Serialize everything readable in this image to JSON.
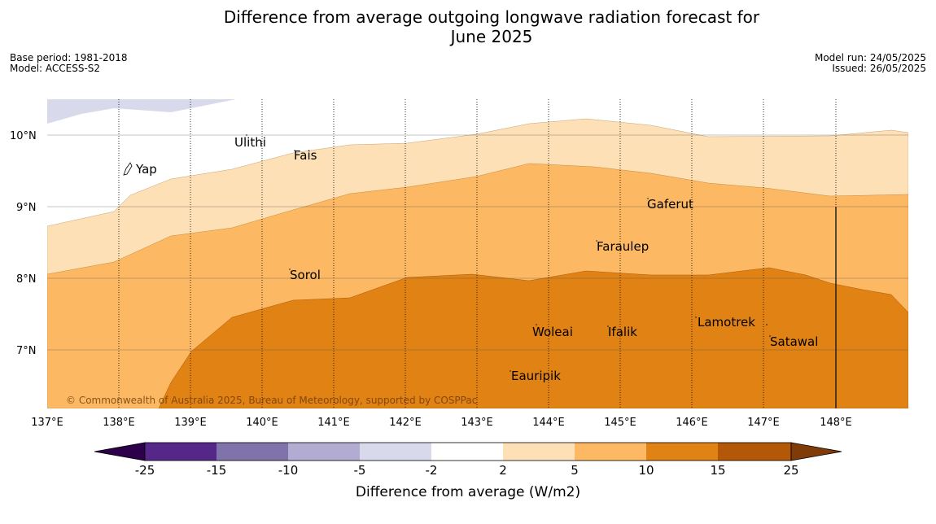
{
  "title_line1": "Difference from average outgoing longwave radiation forecast for",
  "title_line2": "June 2025",
  "meta_left": {
    "base_period": "Base period: 1981-2018",
    "model": "Model: ACCESS-S2"
  },
  "meta_right": {
    "model_run": "Model run: 24/05/2025",
    "issued": "Issued: 26/05/2025"
  },
  "map": {
    "lon_labels": [
      "137°E",
      "138°E",
      "139°E",
      "140°E",
      "141°E",
      "142°E",
      "143°E",
      "144°E",
      "145°E",
      "146°E",
      "147°E",
      "148°E"
    ],
    "lat_labels": [
      "10°N",
      "9°N",
      "8°N",
      "7°N"
    ],
    "places": [
      "Yap",
      "Ulithi",
      "Fais",
      "Gaferut",
      "Faraulep",
      "Sorol",
      "Woleai",
      "Ifalik",
      "Lamotrek",
      "Satawal",
      "Eauripik"
    ],
    "copyright": "© Commonwealth of Australia 2025, Bureau of Meteorology, supported by COSPPac"
  },
  "colorbar": {
    "ticks": [
      "-25",
      "-15",
      "-10",
      "-5",
      "-2",
      "2",
      "5",
      "10",
      "15",
      "25"
    ],
    "colors": [
      "#542788",
      "#8073ac",
      "#b2abd2",
      "#d8daeb",
      "#ffffff",
      "#fee0b6",
      "#fdb863",
      "#e08214",
      "#b35806"
    ],
    "under_color": "#2d004b",
    "over_color": "#7f3b08",
    "label": "Difference from average (W/m2)"
  }
}
